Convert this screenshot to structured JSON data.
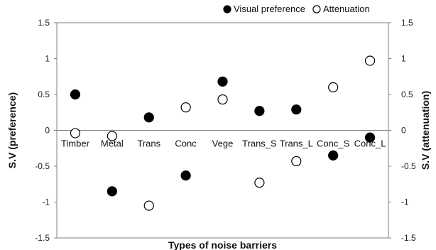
{
  "chart_data": {
    "type": "scatter",
    "xlabel": "Types of noise barriers",
    "ylabel_left": "S.V (preference)",
    "ylabel_right": "S.V (attenuation)",
    "ylim": [
      -1.5,
      1.5
    ],
    "yticks": [
      "1.5",
      "1",
      "0.5",
      "0",
      "-0.5",
      "-1",
      "-1.5"
    ],
    "ytick_values": [
      1.5,
      1,
      0.5,
      0,
      -0.5,
      -1,
      -1.5
    ],
    "categories": [
      "Timber",
      "Metal",
      "Trans",
      "Conc",
      "Vege",
      "Trans_S",
      "Trans_L",
      "Conc_S",
      "Conc_L"
    ],
    "legend_position": "top-right",
    "grid": false,
    "series": [
      {
        "name": "Visual preference",
        "marker": "filled-circle",
        "color": "#000000",
        "values": [
          0.5,
          -0.85,
          0.18,
          -0.63,
          0.68,
          0.27,
          0.29,
          -0.35,
          -0.1
        ]
      },
      {
        "name": "Attenuation",
        "marker": "open-circle",
        "color": "#000000",
        "values": [
          -0.04,
          -0.08,
          -1.05,
          0.32,
          0.43,
          -0.73,
          -0.43,
          0.6,
          0.97
        ]
      }
    ]
  }
}
